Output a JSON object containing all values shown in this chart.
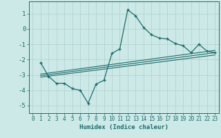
{
  "xlabel": "Humidex (Indice chaleur)",
  "ylabel": "",
  "bg_color": "#cce9e7",
  "grid_color": "#b0d4d2",
  "line_color": "#1a6b6b",
  "marker_color": "#1a6b6b",
  "xlim": [
    -0.5,
    23.5
  ],
  "ylim": [
    -5.5,
    1.8
  ],
  "yticks": [
    1,
    0,
    -1,
    -2,
    -3,
    -4,
    -5
  ],
  "xticks": [
    0,
    1,
    2,
    3,
    4,
    5,
    6,
    7,
    8,
    9,
    10,
    11,
    12,
    13,
    14,
    15,
    16,
    17,
    18,
    19,
    20,
    21,
    22,
    23
  ],
  "series": [
    {
      "x": [
        1,
        2,
        3,
        4,
        5,
        6,
        7,
        8,
        9,
        10,
        11,
        12,
        13,
        14,
        15,
        16,
        17,
        18,
        19,
        20,
        21,
        22,
        23
      ],
      "y": [
        -2.2,
        -3.1,
        -3.55,
        -3.55,
        -3.9,
        -4.0,
        -4.85,
        -3.6,
        -3.35,
        -1.6,
        -1.3,
        1.25,
        0.85,
        0.1,
        -0.38,
        -0.6,
        -0.65,
        -0.95,
        -1.1,
        -1.55,
        -1.0,
        -1.45,
        -1.55
      ],
      "has_markers": true
    },
    {
      "x": [
        1,
        23
      ],
      "y": [
        -3.05,
        -1.55
      ],
      "has_markers": false
    },
    {
      "x": [
        1,
        23
      ],
      "y": [
        -3.15,
        -1.7
      ],
      "has_markers": false
    },
    {
      "x": [
        1,
        23
      ],
      "y": [
        -2.95,
        -1.4
      ],
      "has_markers": false
    }
  ]
}
